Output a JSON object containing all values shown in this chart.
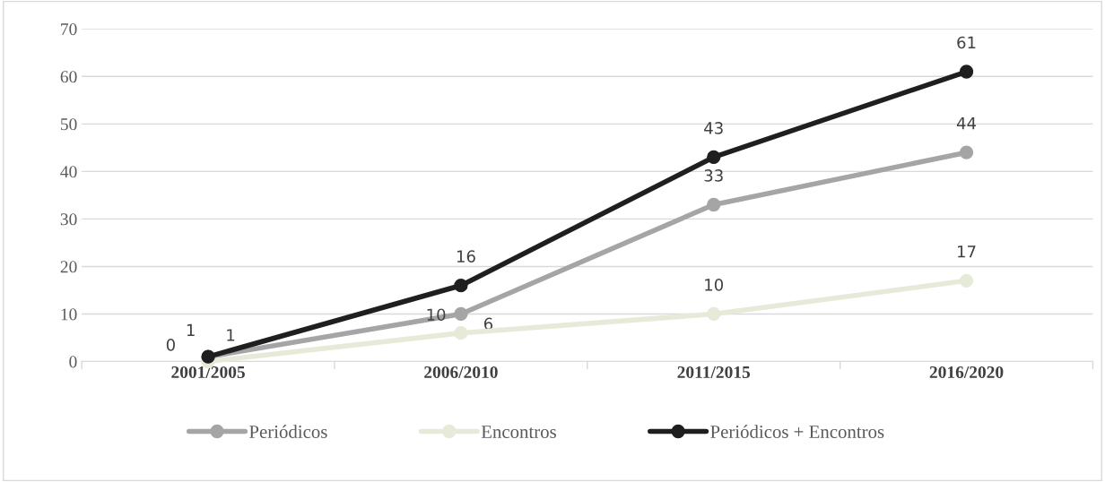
{
  "chart_data": {
    "type": "line",
    "categories": [
      "2001/2005",
      "2006/2010",
      "2011/2015",
      "2016/2020"
    ],
    "series": [
      {
        "name": "Periódicos",
        "color": "#a5a5a5",
        "values": [
          1,
          10,
          33,
          44
        ]
      },
      {
        "name": "Encontros",
        "color": "#e6ead8",
        "values": [
          0,
          6,
          10,
          17
        ]
      },
      {
        "name": "Periódicos + Encontros",
        "color": "#1f1f1f",
        "values": [
          1,
          16,
          43,
          61
        ]
      }
    ],
    "ylim": [
      0,
      70
    ],
    "yticks": [
      0,
      10,
      20,
      30,
      40,
      50,
      60,
      70
    ],
    "grid": "y",
    "legend": "bottom",
    "marker": "circle",
    "line_style": "solid",
    "data_labels": true
  }
}
